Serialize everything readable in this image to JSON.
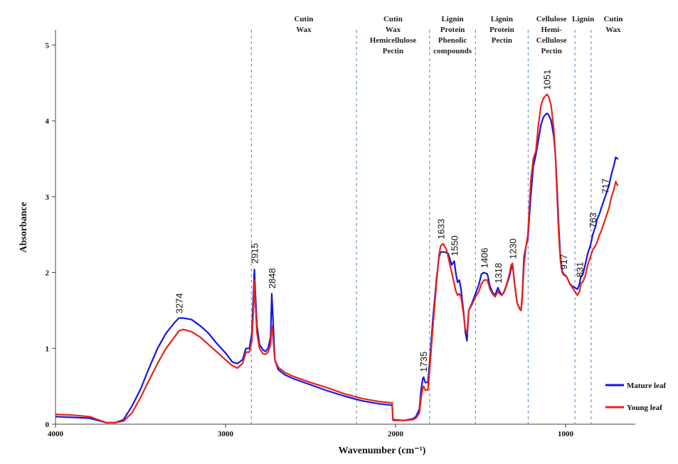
{
  "chart_data": {
    "type": "line",
    "xlabel": "Wavenumber (cm⁻¹)",
    "ylabel": "Absorbance",
    "xlim": [
      4000,
      590
    ],
    "ylim": [
      0,
      5.2
    ],
    "x_ticks": [
      "4000",
      "3000",
      "2000",
      "1000"
    ],
    "y_ticks": [
      "0",
      "1",
      "2",
      "3",
      "4",
      "5"
    ],
    "grid": false,
    "legend_position": "bottom-right",
    "series": [
      {
        "name": "Mature leaf",
        "color": "#1515e6",
        "points": [
          [
            4000,
            0.1
          ],
          [
            3900,
            0.09
          ],
          [
            3800,
            0.08
          ],
          [
            3750,
            0.05
          ],
          [
            3700,
            0.02
          ],
          [
            3650,
            0.02
          ],
          [
            3600,
            0.06
          ],
          [
            3550,
            0.24
          ],
          [
            3500,
            0.46
          ],
          [
            3450,
            0.74
          ],
          [
            3400,
            1.0
          ],
          [
            3350,
            1.2
          ],
          [
            3300,
            1.34
          ],
          [
            3274,
            1.4
          ],
          [
            3250,
            1.4
          ],
          [
            3200,
            1.38
          ],
          [
            3150,
            1.3
          ],
          [
            3100,
            1.2
          ],
          [
            3050,
            1.06
          ],
          [
            3000,
            0.94
          ],
          [
            2960,
            0.82
          ],
          [
            2930,
            0.8
          ],
          [
            2900,
            0.85
          ],
          [
            2880,
            1.0
          ],
          [
            2860,
            1.0
          ],
          [
            2845,
            1.2
          ],
          [
            2835,
            1.75
          ],
          [
            2830,
            2.04
          ],
          [
            2826,
            1.8
          ],
          [
            2815,
            1.3
          ],
          [
            2800,
            1.05
          ],
          [
            2780,
            0.98
          ],
          [
            2765,
            0.96
          ],
          [
            2750,
            1.0
          ],
          [
            2735,
            1.15
          ],
          [
            2728,
            1.72
          ],
          [
            2722,
            1.45
          ],
          [
            2710,
            0.85
          ],
          [
            2690,
            0.72
          ],
          [
            2650,
            0.65
          ],
          [
            2600,
            0.6
          ],
          [
            2500,
            0.52
          ],
          [
            2400,
            0.44
          ],
          [
            2300,
            0.37
          ],
          [
            2200,
            0.31
          ],
          [
            2100,
            0.27
          ],
          [
            2020,
            0.25
          ],
          [
            2015,
            0.06
          ],
          [
            1950,
            0.05
          ],
          [
            1900,
            0.07
          ],
          [
            1880,
            0.1
          ],
          [
            1860,
            0.2
          ],
          [
            1850,
            0.45
          ],
          [
            1840,
            0.6
          ],
          [
            1835,
            0.62
          ],
          [
            1825,
            0.55
          ],
          [
            1810,
            0.55
          ],
          [
            1800,
            0.8
          ],
          [
            1780,
            1.4
          ],
          [
            1760,
            1.9
          ],
          [
            1745,
            2.2
          ],
          [
            1735,
            2.27
          ],
          [
            1710,
            2.27
          ],
          [
            1690,
            2.25
          ],
          [
            1670,
            2.1
          ],
          [
            1655,
            2.15
          ],
          [
            1645,
            1.98
          ],
          [
            1635,
            1.87
          ],
          [
            1625,
            1.9
          ],
          [
            1615,
            1.78
          ],
          [
            1600,
            1.48
          ],
          [
            1590,
            1.22
          ],
          [
            1580,
            1.1
          ],
          [
            1570,
            1.5
          ],
          [
            1550,
            1.6
          ],
          [
            1530,
            1.72
          ],
          [
            1510,
            1.84
          ],
          [
            1495,
            1.98
          ],
          [
            1480,
            2.0
          ],
          [
            1460,
            1.98
          ],
          [
            1445,
            1.82
          ],
          [
            1430,
            1.74
          ],
          [
            1415,
            1.7
          ],
          [
            1405,
            1.76
          ],
          [
            1398,
            1.8
          ],
          [
            1388,
            1.75
          ],
          [
            1375,
            1.7
          ],
          [
            1360,
            1.75
          ],
          [
            1345,
            1.85
          ],
          [
            1330,
            1.95
          ],
          [
            1320,
            2.05
          ],
          [
            1312,
            2.1
          ],
          [
            1300,
            1.85
          ],
          [
            1285,
            1.6
          ],
          [
            1270,
            1.52
          ],
          [
            1262,
            1.5
          ],
          [
            1255,
            1.7
          ],
          [
            1245,
            2.2
          ],
          [
            1235,
            2.32
          ],
          [
            1222,
            2.45
          ],
          [
            1205,
            3.0
          ],
          [
            1190,
            3.4
          ],
          [
            1175,
            3.55
          ],
          [
            1160,
            3.75
          ],
          [
            1145,
            3.95
          ],
          [
            1130,
            4.05
          ],
          [
            1110,
            4.1
          ],
          [
            1100,
            4.08
          ],
          [
            1085,
            4.0
          ],
          [
            1070,
            3.8
          ],
          [
            1060,
            3.55
          ],
          [
            1050,
            3.1
          ],
          [
            1040,
            2.6
          ],
          [
            1030,
            2.2
          ],
          [
            1020,
            2.02
          ],
          [
            1012,
            1.98
          ],
          [
            1005,
            1.97
          ],
          [
            995,
            1.95
          ],
          [
            985,
            1.9
          ],
          [
            975,
            1.85
          ],
          [
            960,
            1.82
          ],
          [
            945,
            1.8
          ],
          [
            930,
            1.78
          ],
          [
            918,
            1.85
          ],
          [
            910,
            1.95
          ],
          [
            898,
            1.98
          ],
          [
            885,
            2.1
          ],
          [
            870,
            2.25
          ],
          [
            855,
            2.35
          ],
          [
            840,
            2.5
          ],
          [
            825,
            2.6
          ],
          [
            815,
            2.7
          ],
          [
            800,
            2.78
          ],
          [
            790,
            2.85
          ],
          [
            775,
            2.95
          ],
          [
            760,
            3.05
          ],
          [
            745,
            3.15
          ],
          [
            730,
            3.3
          ],
          [
            715,
            3.42
          ],
          [
            705,
            3.52
          ],
          [
            695,
            3.5
          ],
          [
            690,
            3.5
          ]
        ]
      },
      {
        "name": "Young leaf",
        "color": "#e8231b",
        "points": [
          [
            4000,
            0.13
          ],
          [
            3900,
            0.12
          ],
          [
            3800,
            0.1
          ],
          [
            3750,
            0.06
          ],
          [
            3700,
            0.02
          ],
          [
            3650,
            0.02
          ],
          [
            3600,
            0.04
          ],
          [
            3550,
            0.15
          ],
          [
            3500,
            0.35
          ],
          [
            3450,
            0.58
          ],
          [
            3400,
            0.8
          ],
          [
            3350,
            1.0
          ],
          [
            3300,
            1.15
          ],
          [
            3274,
            1.23
          ],
          [
            3250,
            1.25
          ],
          [
            3200,
            1.22
          ],
          [
            3150,
            1.15
          ],
          [
            3100,
            1.05
          ],
          [
            3050,
            0.95
          ],
          [
            3000,
            0.85
          ],
          [
            2960,
            0.77
          ],
          [
            2930,
            0.74
          ],
          [
            2900,
            0.8
          ],
          [
            2880,
            0.95
          ],
          [
            2860,
            0.95
          ],
          [
            2845,
            1.1
          ],
          [
            2835,
            1.55
          ],
          [
            2830,
            1.9
          ],
          [
            2826,
            1.65
          ],
          [
            2815,
            1.2
          ],
          [
            2800,
            1.0
          ],
          [
            2780,
            0.93
          ],
          [
            2765,
            0.92
          ],
          [
            2750,
            0.95
          ],
          [
            2735,
            1.05
          ],
          [
            2728,
            1.3
          ],
          [
            2722,
            1.2
          ],
          [
            2710,
            0.85
          ],
          [
            2690,
            0.75
          ],
          [
            2650,
            0.68
          ],
          [
            2600,
            0.63
          ],
          [
            2500,
            0.55
          ],
          [
            2400,
            0.48
          ],
          [
            2300,
            0.4
          ],
          [
            2200,
            0.34
          ],
          [
            2100,
            0.3
          ],
          [
            2020,
            0.28
          ],
          [
            2015,
            0.05
          ],
          [
            1950,
            0.05
          ],
          [
            1900,
            0.06
          ],
          [
            1880,
            0.08
          ],
          [
            1860,
            0.15
          ],
          [
            1850,
            0.35
          ],
          [
            1840,
            0.48
          ],
          [
            1835,
            0.5
          ],
          [
            1825,
            0.45
          ],
          [
            1810,
            0.45
          ],
          [
            1800,
            0.7
          ],
          [
            1780,
            1.3
          ],
          [
            1760,
            1.85
          ],
          [
            1745,
            2.22
          ],
          [
            1735,
            2.35
          ],
          [
            1720,
            2.38
          ],
          [
            1700,
            2.3
          ],
          [
            1680,
            2.1
          ],
          [
            1660,
            1.9
          ],
          [
            1645,
            1.75
          ],
          [
            1635,
            1.7
          ],
          [
            1625,
            1.72
          ],
          [
            1615,
            1.68
          ],
          [
            1600,
            1.45
          ],
          [
            1590,
            1.25
          ],
          [
            1580,
            1.2
          ],
          [
            1570,
            1.5
          ],
          [
            1550,
            1.58
          ],
          [
            1530,
            1.68
          ],
          [
            1510,
            1.75
          ],
          [
            1495,
            1.85
          ],
          [
            1480,
            1.9
          ],
          [
            1460,
            1.9
          ],
          [
            1445,
            1.78
          ],
          [
            1430,
            1.72
          ],
          [
            1415,
            1.68
          ],
          [
            1405,
            1.72
          ],
          [
            1398,
            1.75
          ],
          [
            1388,
            1.72
          ],
          [
            1375,
            1.7
          ],
          [
            1360,
            1.76
          ],
          [
            1345,
            1.86
          ],
          [
            1330,
            1.98
          ],
          [
            1320,
            2.1
          ],
          [
            1312,
            2.12
          ],
          [
            1300,
            1.85
          ],
          [
            1285,
            1.6
          ],
          [
            1270,
            1.52
          ],
          [
            1262,
            1.5
          ],
          [
            1255,
            1.65
          ],
          [
            1245,
            2.1
          ],
          [
            1235,
            2.3
          ],
          [
            1222,
            2.5
          ],
          [
            1205,
            3.2
          ],
          [
            1190,
            3.5
          ],
          [
            1175,
            3.6
          ],
          [
            1160,
            3.95
          ],
          [
            1145,
            4.2
          ],
          [
            1130,
            4.3
          ],
          [
            1110,
            4.35
          ],
          [
            1100,
            4.32
          ],
          [
            1085,
            4.2
          ],
          [
            1070,
            3.9
          ],
          [
            1060,
            3.55
          ],
          [
            1050,
            3.0
          ],
          [
            1040,
            2.5
          ],
          [
            1030,
            2.15
          ],
          [
            1020,
            2.0
          ],
          [
            1012,
            1.97
          ],
          [
            1005,
            1.96
          ],
          [
            995,
            1.95
          ],
          [
            985,
            1.9
          ],
          [
            975,
            1.85
          ],
          [
            960,
            1.8
          ],
          [
            945,
            1.75
          ],
          [
            930,
            1.7
          ],
          [
            918,
            1.75
          ],
          [
            910,
            1.85
          ],
          [
            898,
            1.88
          ],
          [
            885,
            1.95
          ],
          [
            870,
            2.1
          ],
          [
            855,
            2.2
          ],
          [
            840,
            2.3
          ],
          [
            825,
            2.35
          ],
          [
            815,
            2.4
          ],
          [
            800,
            2.5
          ],
          [
            790,
            2.55
          ],
          [
            775,
            2.65
          ],
          [
            760,
            2.75
          ],
          [
            745,
            2.85
          ],
          [
            730,
            3.0
          ],
          [
            715,
            3.1
          ],
          [
            705,
            3.2
          ],
          [
            695,
            3.15
          ],
          [
            690,
            3.15
          ]
        ]
      }
    ],
    "peak_labels": [
      {
        "text": "3274",
        "x": 3274,
        "y": 1.42
      },
      {
        "text": "2915",
        "x": 2830,
        "y": 2.08
      },
      {
        "text": "2848",
        "x": 2728,
        "y": 1.75
      },
      {
        "text": "1735",
        "x": 1837,
        "y": 0.65
      },
      {
        "text": "1633",
        "x": 1735,
        "y": 2.4
      },
      {
        "text": "1550",
        "x": 1655,
        "y": 2.18
      },
      {
        "text": "1406",
        "x": 1480,
        "y": 2.02
      },
      {
        "text": "1318",
        "x": 1398,
        "y": 1.82
      },
      {
        "text": "1230",
        "x": 1312,
        "y": 2.14
      },
      {
        "text": "1051",
        "x": 1110,
        "y": 4.37
      },
      {
        "text": "917",
        "x": 1012,
        "y": 2.0
      },
      {
        "text": "831",
        "x": 918,
        "y": 1.9
      },
      {
        "text": "763",
        "x": 840,
        "y": 2.55
      },
      {
        "text": "717",
        "x": 768,
        "y": 3.0
      }
    ],
    "region_boundaries": [
      2848,
      2230,
      1800,
      1530,
      1220,
      945,
      850
    ],
    "regions": [
      {
        "lines": [
          "Cutin",
          "Wax"
        ],
        "x": 2540
      },
      {
        "lines": [
          "Cutin",
          "Wax",
          "Hemicellulose",
          "Pectin"
        ],
        "x": 2015
      },
      {
        "lines": [
          "Lignin",
          "Protein",
          "Phenolic",
          "compounds"
        ],
        "x": 1665
      },
      {
        "lines": [
          "Lignin",
          "Protein",
          "Pectin"
        ],
        "x": 1375
      },
      {
        "lines": [
          "Cellulose",
          "Hemi-",
          "Cellulose",
          "Pectin"
        ],
        "x": 1083
      },
      {
        "lines": [
          "Lignin"
        ],
        "x": 897
      },
      {
        "lines": [
          "Cutin",
          "Wax"
        ],
        "x": 720
      }
    ]
  }
}
